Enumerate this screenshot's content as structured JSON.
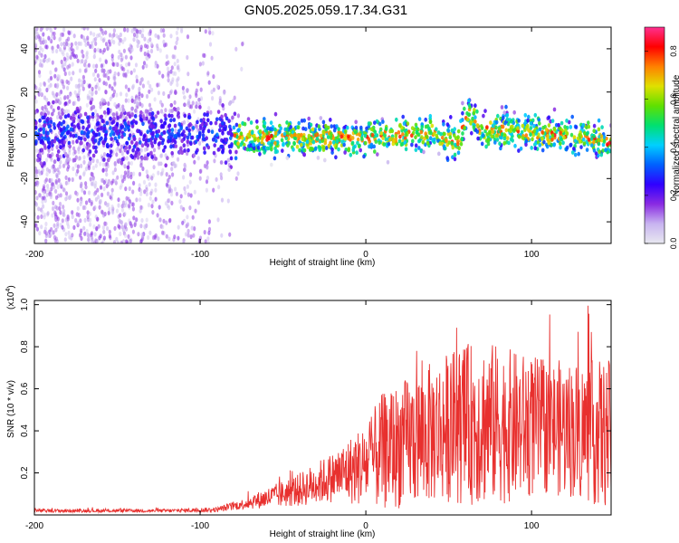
{
  "title": "GN05.2025.059.17.34.G31",
  "colors": {
    "snr_line": "#e8302e",
    "axis": "#000000",
    "background": "#ffffff"
  },
  "chart_data": [
    {
      "type": "heatmap",
      "xlabel": "Height of straight line (km)",
      "ylabel": "Frequency (Hz)",
      "xlim": [
        -200,
        148
      ],
      "ylim": [
        -50,
        50
      ],
      "xticks": [
        -200,
        -100,
        0,
        100
      ],
      "yticks": [
        -40,
        -20,
        0,
        20,
        40
      ],
      "colorbar": {
        "label": "Normalized spectral amplitude",
        "range": [
          0,
          0.9
        ],
        "ticks": [
          0.0,
          0.2,
          0.4,
          0.6,
          0.8
        ],
        "colormap": [
          "#e8e8f0",
          "#c8b4f0",
          "#8a2be2",
          "#3000ff",
          "#0060ff",
          "#00d0ff",
          "#00e070",
          "#60e000",
          "#e0e000",
          "#ff8000",
          "#ff0000",
          "#ff3090"
        ]
      },
      "ridge": {
        "x": [
          -200,
          -150,
          -100,
          -80,
          -60,
          -40,
          -20,
          0,
          20,
          40,
          50,
          55,
          62,
          70,
          90,
          110,
          130,
          148
        ],
        "y": [
          2,
          1,
          1,
          0,
          -1,
          -1,
          -1,
          -1,
          0,
          1,
          -1,
          -4,
          10,
          3,
          2,
          0,
          0,
          -4
        ]
      }
    },
    {
      "type": "line",
      "xlabel": "Height of straight line (km)",
      "ylabel": "SNR (10 * v/v)",
      "y_multiplier": "(x10",
      "y_multiplier_exp": "4",
      "y_multiplier_close": ")",
      "xlim": [
        -200,
        148
      ],
      "ylim": [
        0,
        1.02
      ],
      "xticks": [
        -200,
        -100,
        0,
        100
      ],
      "yticks": [
        0.2,
        0.4,
        0.6,
        0.8,
        1.0
      ],
      "yticklabels": [
        "0.2",
        "0.4",
        "0.6",
        "0.8",
        "1.0"
      ],
      "envelope": {
        "x": [
          -200,
          -120,
          -90,
          -75,
          -60,
          -40,
          -20,
          0,
          10,
          30,
          50,
          70,
          90,
          110,
          130,
          148
        ],
        "mean": [
          0.02,
          0.02,
          0.025,
          0.05,
          0.08,
          0.12,
          0.18,
          0.24,
          0.3,
          0.36,
          0.42,
          0.44,
          0.42,
          0.42,
          0.4,
          0.38
        ],
        "spread": [
          0.01,
          0.01,
          0.015,
          0.03,
          0.06,
          0.1,
          0.15,
          0.25,
          0.35,
          0.4,
          0.45,
          0.5,
          0.45,
          0.4,
          0.42,
          0.45
        ]
      }
    }
  ]
}
